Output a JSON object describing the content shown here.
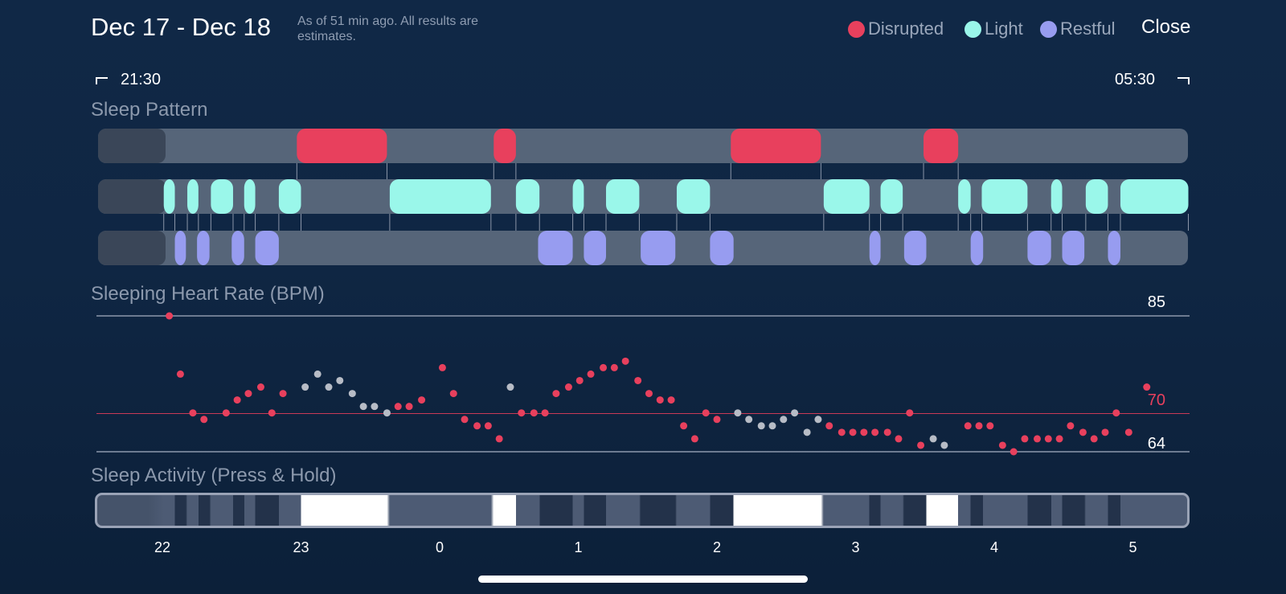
{
  "header": {
    "title": "Dec 17 - Dec 18",
    "subtitle": "As of 51 min ago. All results are estimates.",
    "close_label": "Close",
    "legend": [
      {
        "label": "Disrupted",
        "color": "#e8405d"
      },
      {
        "label": "Light",
        "color": "#9af7ea"
      },
      {
        "label": "Restful",
        "color": "#979cf0"
      }
    ]
  },
  "time_range": {
    "start": "21:30",
    "end": "05:30"
  },
  "sleep_pattern": {
    "label": "Sleep Pattern",
    "stage_hours": {
      "disrupted": [
        [
          22.97,
          23.62
        ],
        [
          0.39,
          0.55
        ],
        [
          2.1,
          2.75
        ],
        [
          3.49,
          3.74
        ]
      ],
      "light": [
        [
          22.01,
          22.09
        ],
        [
          22.18,
          22.26
        ],
        [
          22.35,
          22.51
        ],
        [
          22.59,
          22.67
        ],
        [
          22.84,
          23.0
        ],
        [
          23.64,
          0.37
        ],
        [
          0.55,
          0.72
        ],
        [
          0.96,
          1.04
        ],
        [
          1.2,
          1.44
        ],
        [
          1.71,
          1.95
        ],
        [
          2.77,
          3.1
        ],
        [
          3.18,
          3.34
        ],
        [
          3.74,
          3.83
        ],
        [
          3.91,
          4.24
        ],
        [
          4.41,
          4.49
        ],
        [
          4.66,
          4.82
        ],
        [
          4.91,
          5.4
        ]
      ],
      "restful": [
        [
          22.09,
          22.17
        ],
        [
          22.25,
          22.34
        ],
        [
          22.5,
          22.59
        ],
        [
          22.67,
          22.84
        ],
        [
          0.71,
          0.96
        ],
        [
          1.04,
          1.2
        ],
        [
          1.45,
          1.7
        ],
        [
          1.95,
          2.12
        ],
        [
          3.1,
          3.18
        ],
        [
          3.35,
          3.51
        ],
        [
          3.83,
          3.92
        ],
        [
          4.24,
          4.41
        ],
        [
          4.49,
          4.65
        ],
        [
          4.82,
          4.91
        ]
      ]
    }
  },
  "heart_rate": {
    "label": "Sleeping Heart Rate (BPM)",
    "max": "85",
    "avg": "70",
    "min": "64",
    "colors": {
      "elevated": "#e8405d",
      "normal": "#b7bcc6"
    }
  },
  "sleep_activity": {
    "label": "Sleep Activity (Press & Hold)"
  },
  "x_axis": {
    "ticks": [
      "22",
      "23",
      "0",
      "1",
      "2",
      "3",
      "4",
      "5"
    ]
  },
  "chart_data": {
    "type": "scatter",
    "title": "Sleeping Heart Rate (BPM)",
    "x_unit": "hour",
    "ylim": [
      64,
      85
    ],
    "reference_lines": [
      85,
      70,
      64
    ],
    "points": [
      [
        22.05,
        85,
        "r"
      ],
      [
        22.13,
        76,
        "r"
      ],
      [
        22.22,
        70,
        "r"
      ],
      [
        22.3,
        69,
        "r"
      ],
      [
        22.46,
        70,
        "r"
      ],
      [
        22.54,
        72,
        "r"
      ],
      [
        22.62,
        73,
        "r"
      ],
      [
        22.71,
        74,
        "r"
      ],
      [
        22.79,
        70,
        "r"
      ],
      [
        22.87,
        73,
        "r"
      ],
      [
        23.03,
        74,
        "w"
      ],
      [
        23.12,
        76,
        "w"
      ],
      [
        23.2,
        74,
        "w"
      ],
      [
        23.28,
        75,
        "w"
      ],
      [
        23.37,
        73,
        "w"
      ],
      [
        23.45,
        71,
        "w"
      ],
      [
        23.53,
        71,
        "w"
      ],
      [
        23.62,
        70,
        "w"
      ],
      [
        23.7,
        71,
        "r"
      ],
      [
        23.78,
        71,
        "r"
      ],
      [
        23.87,
        72,
        "r"
      ],
      [
        0.02,
        77,
        "r"
      ],
      [
        0.1,
        73,
        "r"
      ],
      [
        0.18,
        69,
        "r"
      ],
      [
        0.27,
        68,
        "r"
      ],
      [
        0.35,
        68,
        "r"
      ],
      [
        0.43,
        66,
        "r"
      ],
      [
        0.51,
        74,
        "w"
      ],
      [
        0.59,
        70,
        "r"
      ],
      [
        0.68,
        70,
        "r"
      ],
      [
        0.76,
        70,
        "r"
      ],
      [
        0.84,
        73,
        "r"
      ],
      [
        0.93,
        74,
        "r"
      ],
      [
        1.01,
        75,
        "r"
      ],
      [
        1.09,
        76,
        "r"
      ],
      [
        1.18,
        77,
        "r"
      ],
      [
        1.26,
        77,
        "r"
      ],
      [
        1.34,
        78,
        "r"
      ],
      [
        1.43,
        75,
        "r"
      ],
      [
        1.51,
        73,
        "r"
      ],
      [
        1.59,
        72,
        "r"
      ],
      [
        1.67,
        72,
        "r"
      ],
      [
        1.76,
        68,
        "r"
      ],
      [
        1.84,
        66,
        "r"
      ],
      [
        1.92,
        70,
        "r"
      ],
      [
        2.0,
        69,
        "r"
      ],
      [
        2.15,
        70,
        "w"
      ],
      [
        2.23,
        69,
        "w"
      ],
      [
        2.32,
        68,
        "w"
      ],
      [
        2.4,
        68,
        "w"
      ],
      [
        2.48,
        69,
        "w"
      ],
      [
        2.56,
        70,
        "w"
      ],
      [
        2.65,
        67,
        "w"
      ],
      [
        2.73,
        69,
        "w"
      ],
      [
        2.81,
        68,
        "r"
      ],
      [
        2.9,
        67,
        "r"
      ],
      [
        2.98,
        67,
        "r"
      ],
      [
        3.06,
        67,
        "r"
      ],
      [
        3.14,
        67,
        "r"
      ],
      [
        3.23,
        67,
        "r"
      ],
      [
        3.31,
        66,
        "r"
      ],
      [
        3.39,
        70,
        "r"
      ],
      [
        3.47,
        65,
        "r"
      ],
      [
        3.56,
        66,
        "w"
      ],
      [
        3.64,
        65,
        "w"
      ],
      [
        3.81,
        68,
        "r"
      ],
      [
        3.89,
        68,
        "r"
      ],
      [
        3.97,
        68,
        "r"
      ],
      [
        4.06,
        65,
        "r"
      ],
      [
        4.14,
        64,
        "r"
      ],
      [
        4.22,
        66,
        "r"
      ],
      [
        4.31,
        66,
        "r"
      ],
      [
        4.39,
        66,
        "r"
      ],
      [
        4.47,
        66,
        "r"
      ],
      [
        4.55,
        68,
        "r"
      ],
      [
        4.64,
        67,
        "r"
      ],
      [
        4.72,
        66,
        "r"
      ],
      [
        4.8,
        67,
        "r"
      ],
      [
        4.88,
        70,
        "r"
      ],
      [
        4.97,
        67,
        "r"
      ],
      [
        5.1,
        74,
        "r"
      ]
    ]
  }
}
